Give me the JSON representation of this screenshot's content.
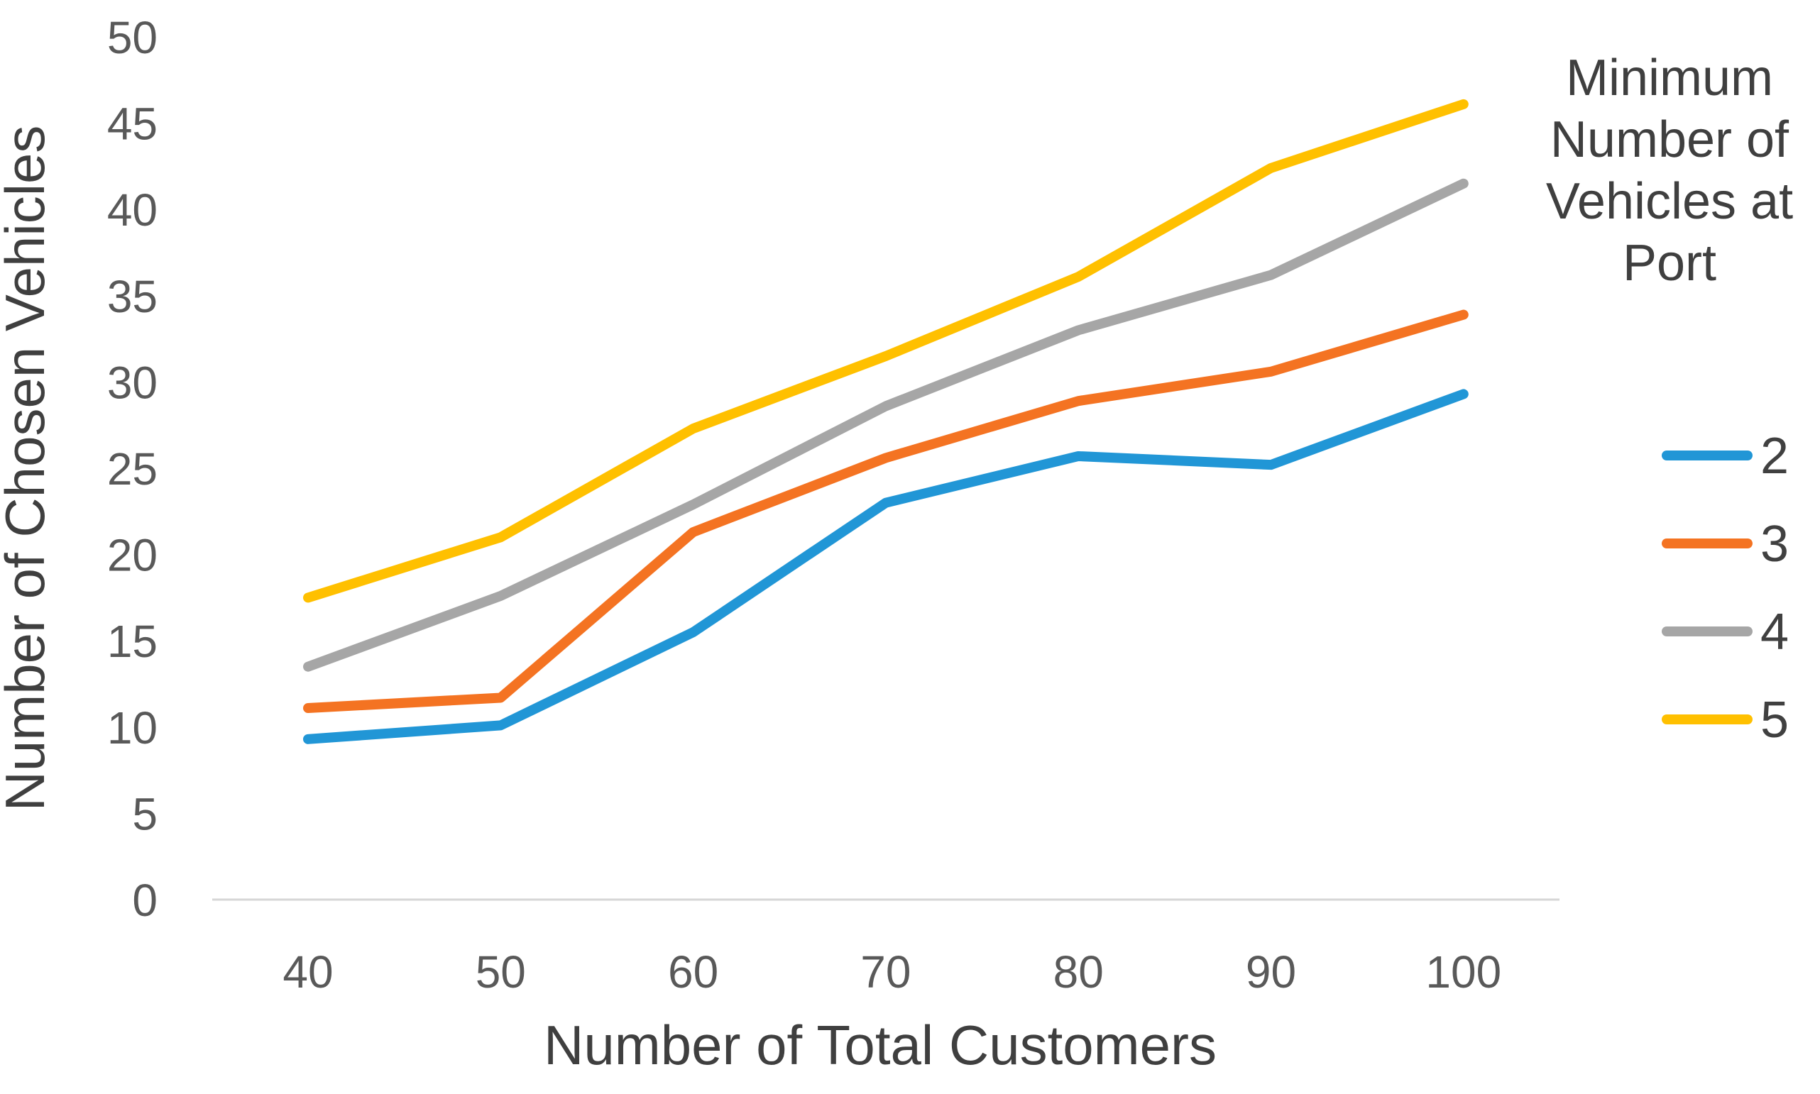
{
  "chart_data": {
    "type": "line",
    "x": [
      40,
      50,
      60,
      70,
      80,
      90,
      100
    ],
    "xticks": [
      "40",
      "50",
      "60",
      "70",
      "80",
      "90",
      "100"
    ],
    "yticks": [
      "0",
      "5",
      "10",
      "15",
      "20",
      "25",
      "30",
      "35",
      "40",
      "45",
      "50"
    ],
    "ylim": [
      0,
      50
    ],
    "ytick_step": 5,
    "grid": false,
    "xlabel": "Number of Total Customers",
    "ylabel": "Number of Chosen Vehicles",
    "legend_title": "Minimum Number of Vehicles at Port",
    "legend_title_lines": [
      "Minimum",
      "Number of",
      "Vehicles at",
      "Port"
    ],
    "legend_position": "right",
    "series": [
      {
        "name": "2",
        "color": "#2196D6",
        "values": [
          9.3,
          10.1,
          15.5,
          23.0,
          25.7,
          25.2,
          29.3
        ]
      },
      {
        "name": "3",
        "color": "#F47322",
        "values": [
          11.1,
          11.7,
          21.3,
          25.6,
          28.9,
          30.6,
          33.9
        ]
      },
      {
        "name": "4",
        "color": "#A6A6A6",
        "values": [
          13.5,
          17.6,
          22.9,
          28.6,
          33.0,
          36.2,
          41.5
        ]
      },
      {
        "name": "5",
        "color": "#FFC000",
        "values": [
          17.5,
          21.0,
          27.3,
          31.5,
          36.1,
          42.4,
          46.1
        ]
      }
    ],
    "colors": {
      "axis_line": "#D6D6D6",
      "tick_labels": "#595959",
      "axis_titles": "#3F3F3F",
      "legend_title": "#3F3F3F",
      "legend_labels": "#404040"
    }
  }
}
